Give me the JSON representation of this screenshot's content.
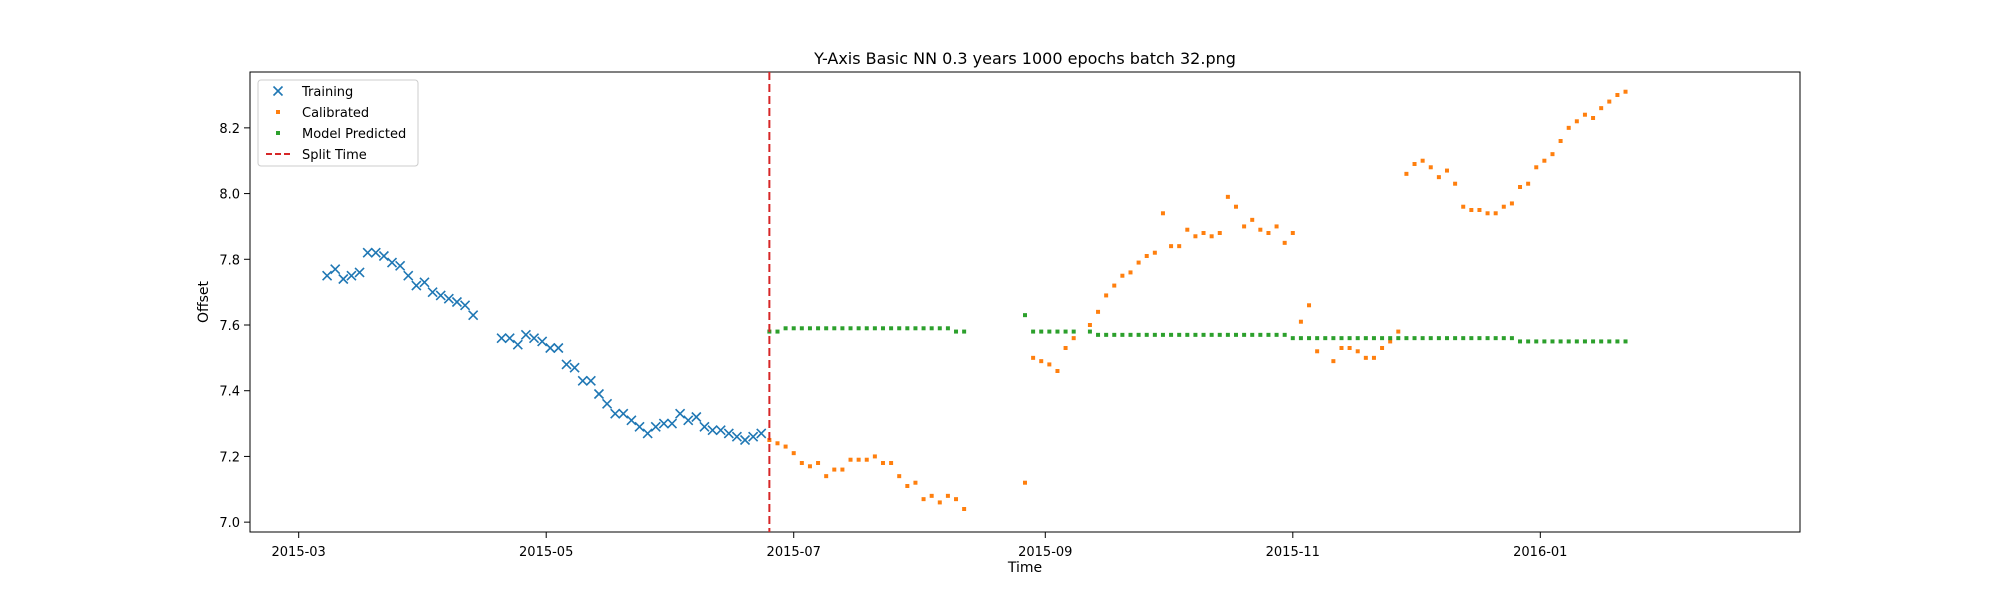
{
  "chart_data": {
    "type": "scatter",
    "title": "Y-Axis Basic NN 0.3 years 1000 epochs batch 32.png",
    "xlabel": "Time",
    "ylabel": "Offset",
    "xlim": [
      "2015-02-17",
      "2016-03-05"
    ],
    "ylim": [
      6.97,
      8.37
    ],
    "xticks": [
      "2015-03-01",
      "2015-05-01",
      "2015-07-01",
      "2015-09-01",
      "2015-11-01",
      "2016-01-01"
    ],
    "xtick_labels": [
      "2015-03",
      "2015-05",
      "2015-07",
      "2015-09",
      "2015-11",
      "2016-01"
    ],
    "yticks": [
      7.0,
      7.2,
      7.4,
      7.6,
      7.8,
      8.0,
      8.2
    ],
    "ytick_labels": [
      "7.0",
      "7.2",
      "7.4",
      "7.6",
      "7.8",
      "8.0",
      "8.2"
    ],
    "grid": false,
    "legend_position": "top-left",
    "split_time": "2015-06-25",
    "series": [
      {
        "name": "Training",
        "marker": "x",
        "color": "#1f77b4",
        "points": [
          [
            "2015-03-08",
            7.75
          ],
          [
            "2015-03-10",
            7.77
          ],
          [
            "2015-03-12",
            7.74
          ],
          [
            "2015-03-14",
            7.75
          ],
          [
            "2015-03-16",
            7.76
          ],
          [
            "2015-03-18",
            7.82
          ],
          [
            "2015-03-20",
            7.82
          ],
          [
            "2015-03-22",
            7.81
          ],
          [
            "2015-03-24",
            7.79
          ],
          [
            "2015-03-26",
            7.78
          ],
          [
            "2015-03-28",
            7.75
          ],
          [
            "2015-03-30",
            7.72
          ],
          [
            "2015-04-01",
            7.73
          ],
          [
            "2015-04-03",
            7.7
          ],
          [
            "2015-04-05",
            7.69
          ],
          [
            "2015-04-07",
            7.68
          ],
          [
            "2015-04-09",
            7.67
          ],
          [
            "2015-04-11",
            7.66
          ],
          [
            "2015-04-13",
            7.63
          ],
          [
            "2015-04-20",
            7.56
          ],
          [
            "2015-04-22",
            7.56
          ],
          [
            "2015-04-24",
            7.54
          ],
          [
            "2015-04-26",
            7.57
          ],
          [
            "2015-04-28",
            7.56
          ],
          [
            "2015-04-30",
            7.55
          ],
          [
            "2015-05-02",
            7.53
          ],
          [
            "2015-05-04",
            7.53
          ],
          [
            "2015-05-06",
            7.48
          ],
          [
            "2015-05-08",
            7.47
          ],
          [
            "2015-05-10",
            7.43
          ],
          [
            "2015-05-12",
            7.43
          ],
          [
            "2015-05-14",
            7.39
          ],
          [
            "2015-05-16",
            7.36
          ],
          [
            "2015-05-18",
            7.33
          ],
          [
            "2015-05-20",
            7.33
          ],
          [
            "2015-05-22",
            7.31
          ],
          [
            "2015-05-24",
            7.29
          ],
          [
            "2015-05-26",
            7.27
          ],
          [
            "2015-05-28",
            7.29
          ],
          [
            "2015-05-30",
            7.3
          ],
          [
            "2015-06-01",
            7.3
          ],
          [
            "2015-06-03",
            7.33
          ],
          [
            "2015-06-05",
            7.31
          ],
          [
            "2015-06-07",
            7.32
          ],
          [
            "2015-06-09",
            7.29
          ],
          [
            "2015-06-11",
            7.28
          ],
          [
            "2015-06-13",
            7.28
          ],
          [
            "2015-06-15",
            7.27
          ],
          [
            "2015-06-17",
            7.26
          ],
          [
            "2015-06-19",
            7.25
          ],
          [
            "2015-06-21",
            7.26
          ],
          [
            "2015-06-23",
            7.27
          ]
        ]
      },
      {
        "name": "Calibrated",
        "marker": "square",
        "color": "#ff7f0e",
        "points": [
          [
            "2015-06-25",
            7.25
          ],
          [
            "2015-06-27",
            7.24
          ],
          [
            "2015-06-29",
            7.23
          ],
          [
            "2015-07-01",
            7.21
          ],
          [
            "2015-07-03",
            7.18
          ],
          [
            "2015-07-05",
            7.17
          ],
          [
            "2015-07-07",
            7.18
          ],
          [
            "2015-07-09",
            7.14
          ],
          [
            "2015-07-11",
            7.16
          ],
          [
            "2015-07-13",
            7.16
          ],
          [
            "2015-07-15",
            7.19
          ],
          [
            "2015-07-17",
            7.19
          ],
          [
            "2015-07-19",
            7.19
          ],
          [
            "2015-07-21",
            7.2
          ],
          [
            "2015-07-23",
            7.18
          ],
          [
            "2015-07-25",
            7.18
          ],
          [
            "2015-07-27",
            7.14
          ],
          [
            "2015-07-29",
            7.11
          ],
          [
            "2015-07-31",
            7.12
          ],
          [
            "2015-08-02",
            7.07
          ],
          [
            "2015-08-04",
            7.08
          ],
          [
            "2015-08-06",
            7.06
          ],
          [
            "2015-08-08",
            7.08
          ],
          [
            "2015-08-10",
            7.07
          ],
          [
            "2015-08-12",
            7.04
          ],
          [
            "2015-08-27",
            7.12
          ],
          [
            "2015-08-29",
            7.5
          ],
          [
            "2015-08-31",
            7.49
          ],
          [
            "2015-09-02",
            7.48
          ],
          [
            "2015-09-04",
            7.46
          ],
          [
            "2015-09-06",
            7.53
          ],
          [
            "2015-09-08",
            7.56
          ],
          [
            "2015-09-12",
            7.6
          ],
          [
            "2015-09-14",
            7.64
          ],
          [
            "2015-09-16",
            7.69
          ],
          [
            "2015-09-18",
            7.72
          ],
          [
            "2015-09-20",
            7.75
          ],
          [
            "2015-09-22",
            7.76
          ],
          [
            "2015-09-24",
            7.79
          ],
          [
            "2015-09-26",
            7.81
          ],
          [
            "2015-09-28",
            7.82
          ],
          [
            "2015-09-30",
            7.94
          ],
          [
            "2015-10-02",
            7.84
          ],
          [
            "2015-10-04",
            7.84
          ],
          [
            "2015-10-06",
            7.89
          ],
          [
            "2015-10-08",
            7.87
          ],
          [
            "2015-10-10",
            7.88
          ],
          [
            "2015-10-12",
            7.87
          ],
          [
            "2015-10-14",
            7.88
          ],
          [
            "2015-10-16",
            7.99
          ],
          [
            "2015-10-18",
            7.96
          ],
          [
            "2015-10-20",
            7.9
          ],
          [
            "2015-10-22",
            7.92
          ],
          [
            "2015-10-24",
            7.89
          ],
          [
            "2015-10-26",
            7.88
          ],
          [
            "2015-10-28",
            7.9
          ],
          [
            "2015-10-30",
            7.85
          ],
          [
            "2015-11-01",
            7.88
          ],
          [
            "2015-11-03",
            7.61
          ],
          [
            "2015-11-05",
            7.66
          ],
          [
            "2015-11-07",
            7.52
          ],
          [
            "2015-11-11",
            7.49
          ],
          [
            "2015-11-13",
            7.53
          ],
          [
            "2015-11-15",
            7.53
          ],
          [
            "2015-11-17",
            7.52
          ],
          [
            "2015-11-19",
            7.5
          ],
          [
            "2015-11-21",
            7.5
          ],
          [
            "2015-11-23",
            7.53
          ],
          [
            "2015-11-25",
            7.55
          ],
          [
            "2015-11-27",
            7.58
          ],
          [
            "2015-11-29",
            8.06
          ],
          [
            "2015-12-01",
            8.09
          ],
          [
            "2015-12-03",
            8.1
          ],
          [
            "2015-12-05",
            8.08
          ],
          [
            "2015-12-07",
            8.05
          ],
          [
            "2015-12-09",
            8.07
          ],
          [
            "2015-12-11",
            8.03
          ],
          [
            "2015-12-13",
            7.96
          ],
          [
            "2015-12-15",
            7.95
          ],
          [
            "2015-12-17",
            7.95
          ],
          [
            "2015-12-19",
            7.94
          ],
          [
            "2015-12-21",
            7.94
          ],
          [
            "2015-12-23",
            7.96
          ],
          [
            "2015-12-25",
            7.97
          ],
          [
            "2015-12-27",
            8.02
          ],
          [
            "2015-12-29",
            8.03
          ],
          [
            "2015-12-31",
            8.08
          ],
          [
            "2016-01-02",
            8.1
          ],
          [
            "2016-01-04",
            8.12
          ],
          [
            "2016-01-06",
            8.16
          ],
          [
            "2016-01-08",
            8.2
          ],
          [
            "2016-01-10",
            8.22
          ],
          [
            "2016-01-12",
            8.24
          ],
          [
            "2016-01-14",
            8.23
          ],
          [
            "2016-01-16",
            8.26
          ],
          [
            "2016-01-18",
            8.28
          ],
          [
            "2016-01-20",
            8.3
          ],
          [
            "2016-01-22",
            8.31
          ]
        ]
      },
      {
        "name": "Model Predicted",
        "marker": "square",
        "color": "#2ca02c",
        "points": [
          [
            "2015-06-25",
            7.58
          ],
          [
            "2015-06-27",
            7.58
          ],
          [
            "2015-06-29",
            7.59
          ],
          [
            "2015-07-01",
            7.59
          ],
          [
            "2015-07-03",
            7.59
          ],
          [
            "2015-07-05",
            7.59
          ],
          [
            "2015-07-07",
            7.59
          ],
          [
            "2015-07-09",
            7.59
          ],
          [
            "2015-07-11",
            7.59
          ],
          [
            "2015-07-13",
            7.59
          ],
          [
            "2015-07-15",
            7.59
          ],
          [
            "2015-07-17",
            7.59
          ],
          [
            "2015-07-19",
            7.59
          ],
          [
            "2015-07-21",
            7.59
          ],
          [
            "2015-07-23",
            7.59
          ],
          [
            "2015-07-25",
            7.59
          ],
          [
            "2015-07-27",
            7.59
          ],
          [
            "2015-07-29",
            7.59
          ],
          [
            "2015-07-31",
            7.59
          ],
          [
            "2015-08-02",
            7.59
          ],
          [
            "2015-08-04",
            7.59
          ],
          [
            "2015-08-06",
            7.59
          ],
          [
            "2015-08-08",
            7.59
          ],
          [
            "2015-08-10",
            7.58
          ],
          [
            "2015-08-12",
            7.58
          ],
          [
            "2015-08-27",
            7.63
          ],
          [
            "2015-08-29",
            7.58
          ],
          [
            "2015-08-31",
            7.58
          ],
          [
            "2015-09-02",
            7.58
          ],
          [
            "2015-09-04",
            7.58
          ],
          [
            "2015-09-06",
            7.58
          ],
          [
            "2015-09-08",
            7.58
          ],
          [
            "2015-09-12",
            7.58
          ],
          [
            "2015-09-14",
            7.57
          ],
          [
            "2015-09-16",
            7.57
          ],
          [
            "2015-09-18",
            7.57
          ],
          [
            "2015-09-20",
            7.57
          ],
          [
            "2015-09-22",
            7.57
          ],
          [
            "2015-09-24",
            7.57
          ],
          [
            "2015-09-26",
            7.57
          ],
          [
            "2015-09-28",
            7.57
          ],
          [
            "2015-09-30",
            7.57
          ],
          [
            "2015-10-02",
            7.57
          ],
          [
            "2015-10-04",
            7.57
          ],
          [
            "2015-10-06",
            7.57
          ],
          [
            "2015-10-08",
            7.57
          ],
          [
            "2015-10-10",
            7.57
          ],
          [
            "2015-10-12",
            7.57
          ],
          [
            "2015-10-14",
            7.57
          ],
          [
            "2015-10-16",
            7.57
          ],
          [
            "2015-10-18",
            7.57
          ],
          [
            "2015-10-20",
            7.57
          ],
          [
            "2015-10-22",
            7.57
          ],
          [
            "2015-10-24",
            7.57
          ],
          [
            "2015-10-26",
            7.57
          ],
          [
            "2015-10-28",
            7.57
          ],
          [
            "2015-10-30",
            7.57
          ],
          [
            "2015-11-01",
            7.56
          ],
          [
            "2015-11-03",
            7.56
          ],
          [
            "2015-11-05",
            7.56
          ],
          [
            "2015-11-07",
            7.56
          ],
          [
            "2015-11-09",
            7.56
          ],
          [
            "2015-11-11",
            7.56
          ],
          [
            "2015-11-13",
            7.56
          ],
          [
            "2015-11-15",
            7.56
          ],
          [
            "2015-11-17",
            7.56
          ],
          [
            "2015-11-19",
            7.56
          ],
          [
            "2015-11-21",
            7.56
          ],
          [
            "2015-11-23",
            7.56
          ],
          [
            "2015-11-25",
            7.56
          ],
          [
            "2015-11-27",
            7.56
          ],
          [
            "2015-11-29",
            7.56
          ],
          [
            "2015-12-01",
            7.56
          ],
          [
            "2015-12-03",
            7.56
          ],
          [
            "2015-12-05",
            7.56
          ],
          [
            "2015-12-07",
            7.56
          ],
          [
            "2015-12-09",
            7.56
          ],
          [
            "2015-12-11",
            7.56
          ],
          [
            "2015-12-13",
            7.56
          ],
          [
            "2015-12-15",
            7.56
          ],
          [
            "2015-12-17",
            7.56
          ],
          [
            "2015-12-19",
            7.56
          ],
          [
            "2015-12-21",
            7.56
          ],
          [
            "2015-12-23",
            7.56
          ],
          [
            "2015-12-25",
            7.56
          ],
          [
            "2015-12-27",
            7.55
          ],
          [
            "2015-12-29",
            7.55
          ],
          [
            "2015-12-31",
            7.55
          ],
          [
            "2016-01-02",
            7.55
          ],
          [
            "2016-01-04",
            7.55
          ],
          [
            "2016-01-06",
            7.55
          ],
          [
            "2016-01-08",
            7.55
          ],
          [
            "2016-01-10",
            7.55
          ],
          [
            "2016-01-12",
            7.55
          ],
          [
            "2016-01-14",
            7.55
          ],
          [
            "2016-01-16",
            7.55
          ],
          [
            "2016-01-18",
            7.55
          ],
          [
            "2016-01-20",
            7.55
          ],
          [
            "2016-01-22",
            7.55
          ]
        ]
      }
    ],
    "legend": [
      {
        "label": "Training",
        "marker": "x",
        "color": "#1f77b4"
      },
      {
        "label": "Calibrated",
        "marker": "square",
        "color": "#ff7f0e"
      },
      {
        "label": "Model Predicted",
        "marker": "square",
        "color": "#2ca02c"
      },
      {
        "label": "Split Time",
        "marker": "dashed-line",
        "color": "#d62728"
      }
    ]
  }
}
